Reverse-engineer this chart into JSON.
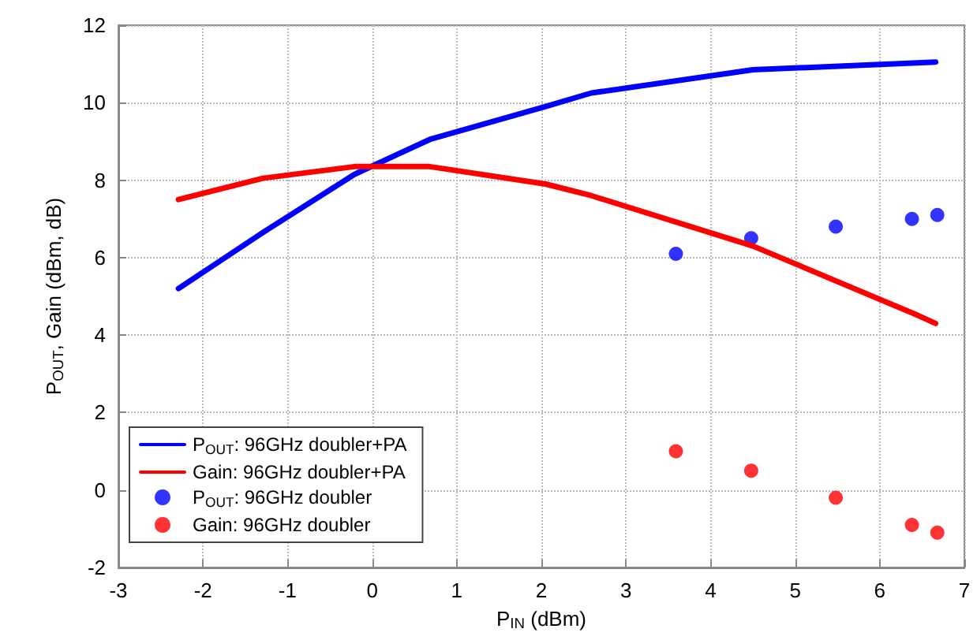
{
  "chart_data": {
    "type": "line",
    "xlabel": "P$_{IN}$ (dBm)",
    "ylabel": "P$_{OUT}$, Gain (dBm, dB)",
    "xlim": [
      -3,
      7
    ],
    "xticks": [
      -3,
      -2,
      -1,
      0,
      1,
      2,
      3,
      4,
      5,
      6,
      7
    ],
    "ylim": [
      -2,
      12
    ],
    "yticks": [
      -2,
      0,
      2,
      4,
      6,
      8,
      10,
      12
    ],
    "grid": true,
    "legend": "bottom left",
    "line_style": "solid",
    "series": [
      {
        "name": "P$_{OUT}$: 96GHz doubler+PA",
        "color": "#0000ff",
        "marker": "none",
        "x": [
          -2.29,
          -1.29,
          -0.21,
          0.68,
          2.05,
          2.59,
          4.5,
          6.66
        ],
        "values": [
          5.2,
          6.65,
          8.15,
          9.05,
          9.9,
          10.25,
          10.85,
          11.05
        ]
      },
      {
        "name": "Gain: 96GHz doubler+PA",
        "color": "#ff0000",
        "marker": "none",
        "x": [
          -2.29,
          -1.29,
          -0.21,
          0.68,
          2.05,
          2.59,
          4.5,
          6.46,
          6.66
        ],
        "values": [
          7.5,
          8.05,
          8.35,
          8.35,
          7.9,
          7.6,
          6.3,
          4.5,
          4.3
        ]
      },
      {
        "name": "P$_{OUT}$: 96GHz doubler",
        "type": "scatter",
        "color": "#0000ff",
        "marker": "circle",
        "x": [
          3.59,
          4.48,
          5.48,
          6.38,
          6.68
        ],
        "values": [
          6.1,
          6.5,
          6.8,
          7.0,
          7.1
        ]
      },
      {
        "name": "Gain: 96GHz doubler",
        "type": "scatter",
        "color": "#ff0000",
        "marker": "circle",
        "x": [
          3.59,
          4.48,
          5.48,
          6.38,
          6.68
        ],
        "values": [
          1.0,
          0.5,
          -0.2,
          -0.9,
          -1.1
        ]
      }
    ]
  }
}
